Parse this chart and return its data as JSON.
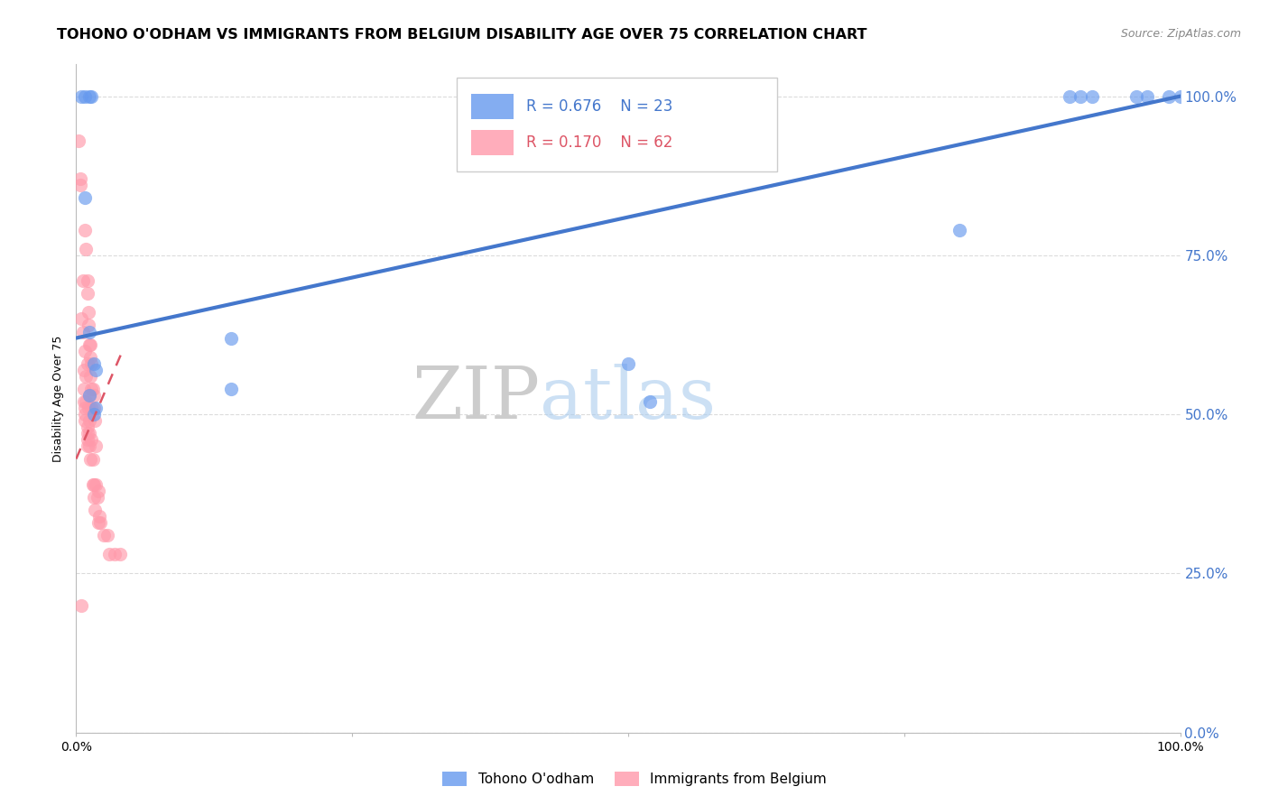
{
  "title": "TOHONO O'ODHAM VS IMMIGRANTS FROM BELGIUM DISABILITY AGE OVER 75 CORRELATION CHART",
  "source": "Source: ZipAtlas.com",
  "ylabel": "Disability Age Over 75",
  "legend_blue_R": "R = 0.676",
  "legend_blue_N": "N = 23",
  "legend_pink_R": "R = 0.170",
  "legend_pink_N": "N = 62",
  "legend_blue_label": "Tohono O'odham",
  "legend_pink_label": "Immigrants from Belgium",
  "blue_scatter_x": [
    0.005,
    0.008,
    0.012,
    0.014,
    0.008,
    0.012,
    0.016,
    0.018,
    0.012,
    0.018,
    0.016,
    0.14,
    0.14,
    0.5,
    0.52,
    0.8,
    0.9,
    0.91,
    0.92,
    0.96,
    0.97,
    0.99,
    1.0
  ],
  "blue_scatter_y": [
    1.0,
    1.0,
    1.0,
    1.0,
    0.84,
    0.63,
    0.58,
    0.57,
    0.53,
    0.51,
    0.5,
    0.62,
    0.54,
    0.58,
    0.52,
    0.79,
    1.0,
    1.0,
    1.0,
    1.0,
    1.0,
    1.0,
    1.0
  ],
  "pink_scatter_x": [
    0.002,
    0.004,
    0.005,
    0.006,
    0.007,
    0.007,
    0.007,
    0.008,
    0.008,
    0.008,
    0.009,
    0.009,
    0.01,
    0.01,
    0.01,
    0.01,
    0.011,
    0.012,
    0.012,
    0.012,
    0.013,
    0.013,
    0.013,
    0.014,
    0.014,
    0.015,
    0.015,
    0.016,
    0.016,
    0.017,
    0.018,
    0.019,
    0.02,
    0.021,
    0.022,
    0.025,
    0.028,
    0.03,
    0.035,
    0.04,
    0.008,
    0.009,
    0.01,
    0.01,
    0.011,
    0.011,
    0.012,
    0.013,
    0.014,
    0.015,
    0.016,
    0.017,
    0.018,
    0.02,
    0.008,
    0.01,
    0.012,
    0.005,
    0.014,
    0.016,
    0.004,
    0.006
  ],
  "pink_scatter_y": [
    0.93,
    0.87,
    0.65,
    0.63,
    0.57,
    0.54,
    0.52,
    0.51,
    0.5,
    0.49,
    0.56,
    0.52,
    0.48,
    0.47,
    0.46,
    0.45,
    0.51,
    0.49,
    0.47,
    0.45,
    0.43,
    0.59,
    0.56,
    0.51,
    0.46,
    0.43,
    0.39,
    0.39,
    0.37,
    0.35,
    0.39,
    0.37,
    0.33,
    0.34,
    0.33,
    0.31,
    0.31,
    0.28,
    0.28,
    0.28,
    0.79,
    0.76,
    0.71,
    0.69,
    0.66,
    0.64,
    0.61,
    0.61,
    0.54,
    0.54,
    0.51,
    0.49,
    0.45,
    0.38,
    0.6,
    0.58,
    0.53,
    0.2,
    0.58,
    0.53,
    0.86,
    0.71
  ],
  "blue_line_x": [
    0.0,
    1.0
  ],
  "blue_line_y": [
    0.62,
    1.0
  ],
  "pink_line_x": [
    0.0,
    0.042
  ],
  "pink_line_y": [
    0.43,
    0.6
  ],
  "blue_color": "#6699EE",
  "pink_color": "#FF99AA",
  "blue_line_color": "#4477CC",
  "pink_line_color": "#DD5566",
  "watermark_zip": "ZIP",
  "watermark_atlas": "atlas",
  "grid_color": "#CCCCCC",
  "title_fontsize": 11.5,
  "source_fontsize": 9,
  "axis_label_fontsize": 9,
  "scatter_size": 120,
  "ytick_values": [
    0.0,
    0.25,
    0.5,
    0.75,
    1.0
  ],
  "ytick_labels": [
    "0.0%",
    "25.0%",
    "50.0%",
    "75.0%",
    "100.0%"
  ],
  "xlim": [
    0.0,
    1.0
  ],
  "ylim": [
    0.0,
    1.05
  ]
}
